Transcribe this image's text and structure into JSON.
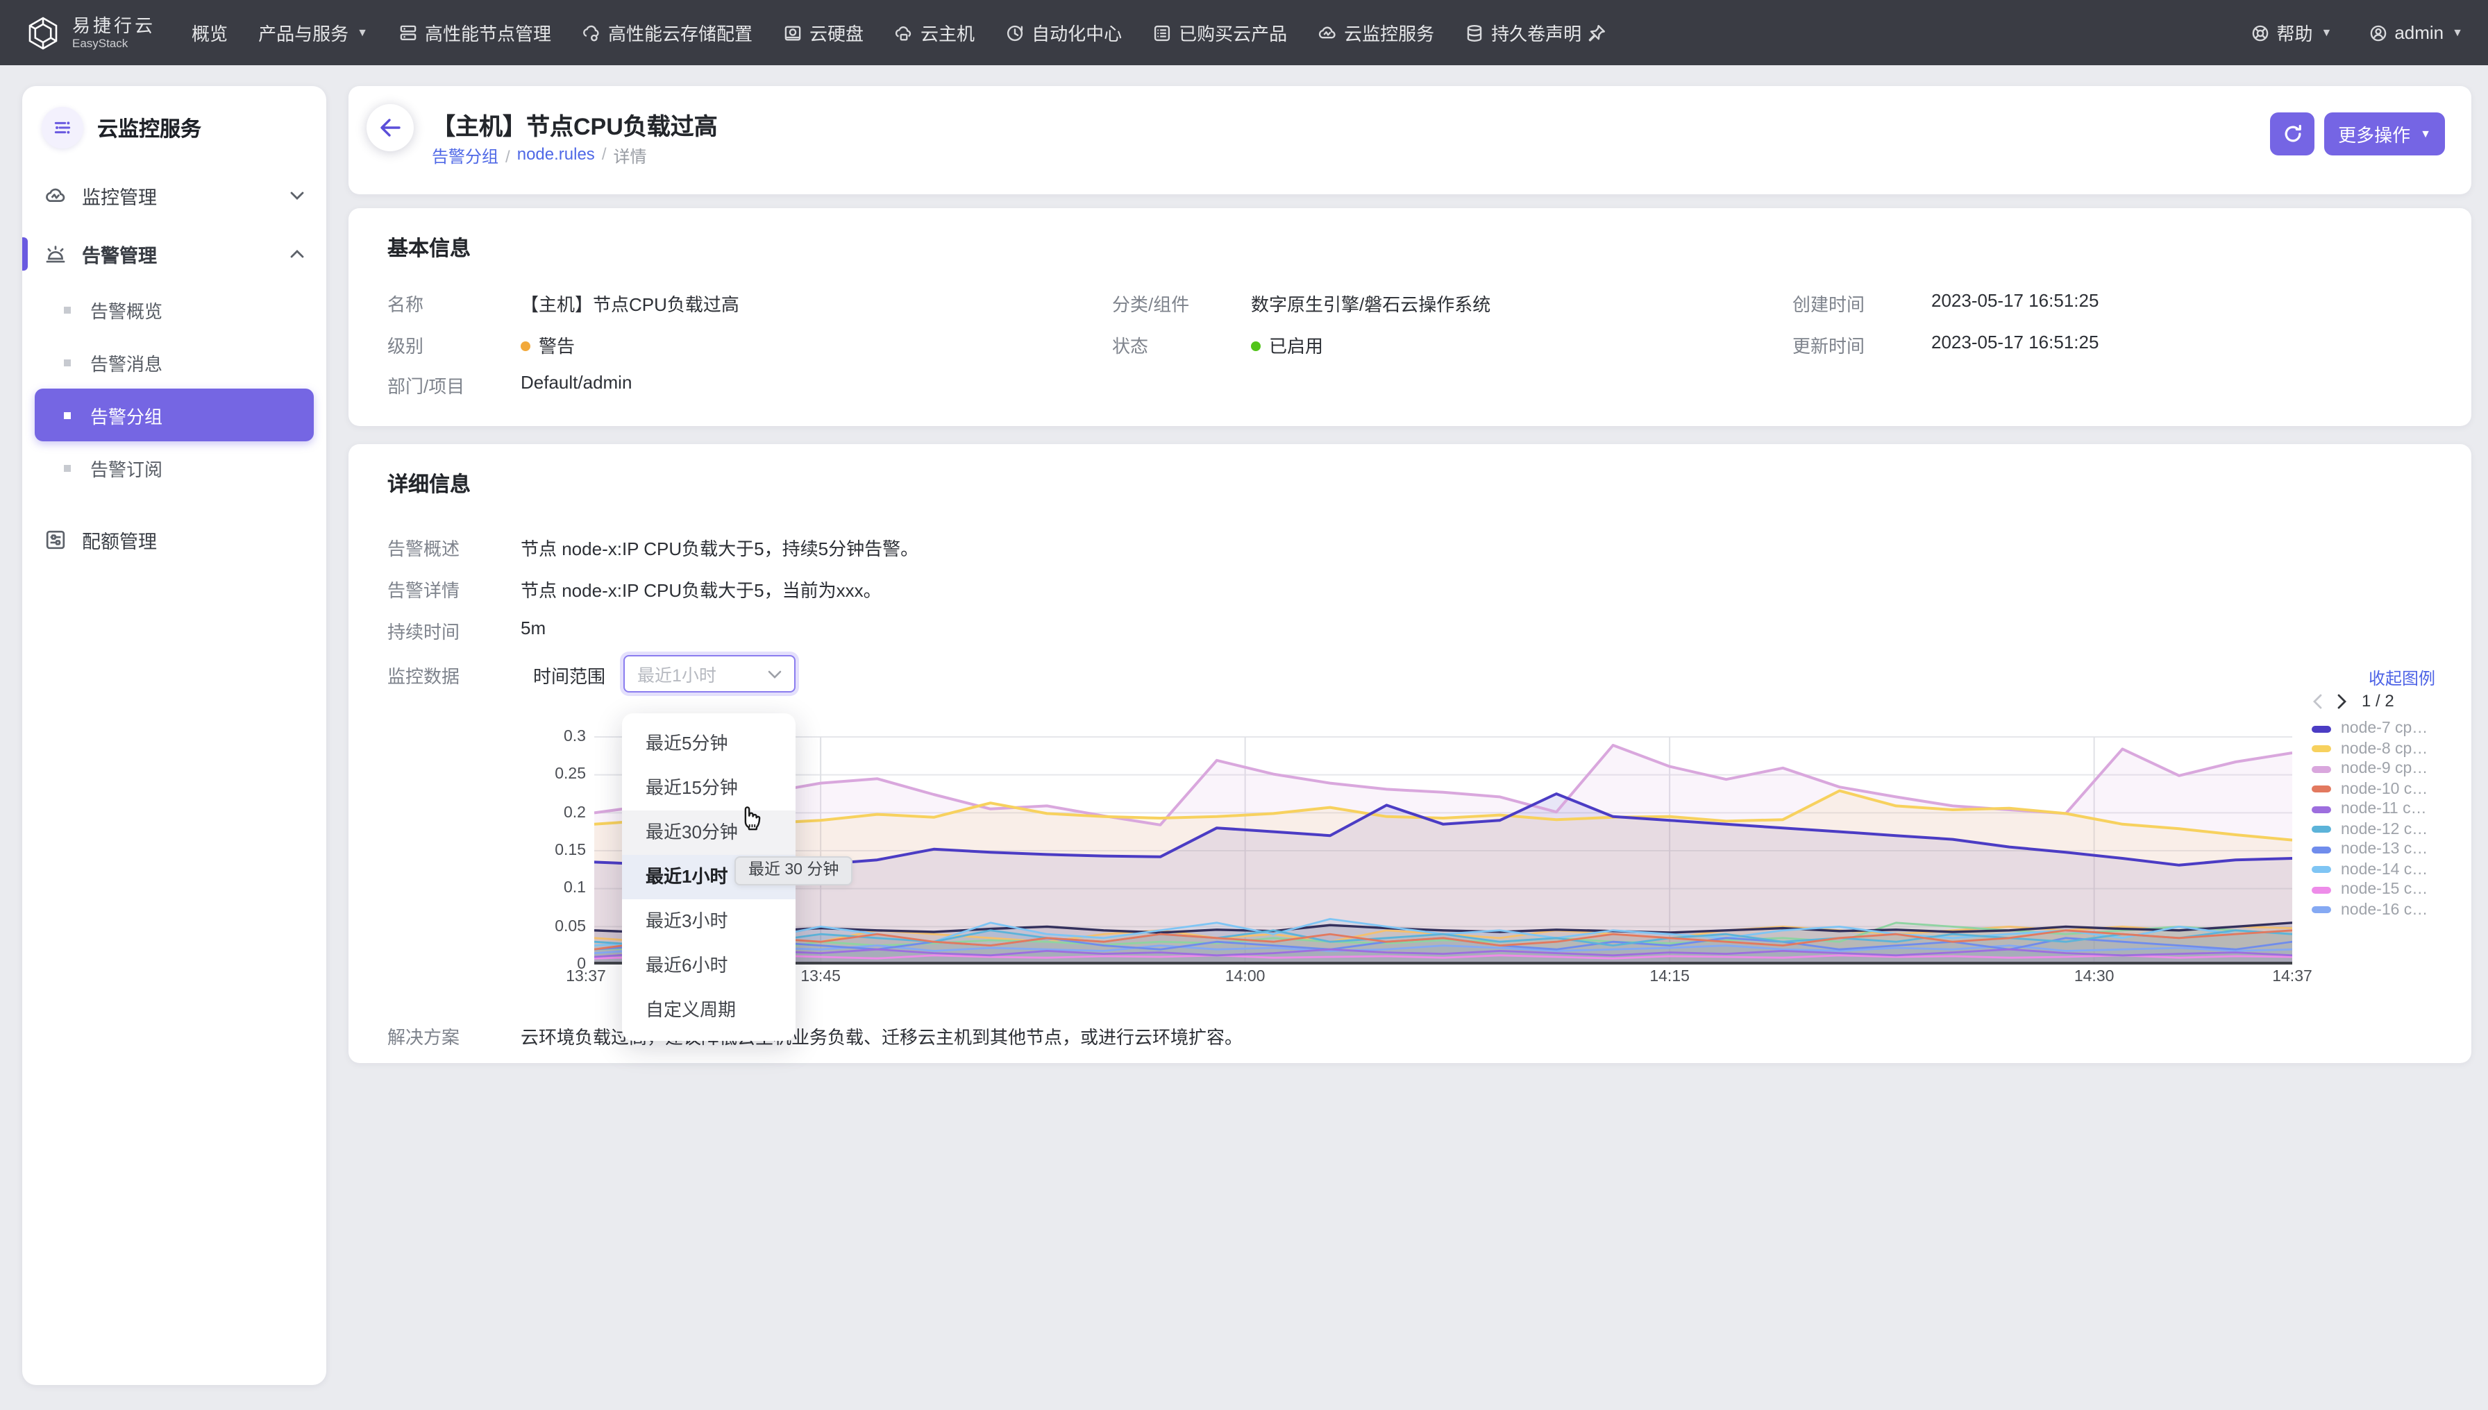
{
  "navbar": {
    "logo": {
      "line1": "易捷行云",
      "line2": "EasyStack"
    },
    "items": [
      {
        "label": "概览",
        "icon": "",
        "caret": false
      },
      {
        "label": "产品与服务",
        "icon": "",
        "caret": true
      },
      {
        "label": "高性能节点管理",
        "icon": "node",
        "caret": false
      },
      {
        "label": "高性能云存储配置",
        "icon": "storage",
        "caret": false
      },
      {
        "label": "云硬盘",
        "icon": "disk",
        "caret": false
      },
      {
        "label": "云主机",
        "icon": "host",
        "caret": false
      },
      {
        "label": "自动化中心",
        "icon": "automation",
        "caret": false
      },
      {
        "label": "已购买云产品",
        "icon": "purchased",
        "caret": false
      },
      {
        "label": "云监控服务",
        "icon": "monitor",
        "caret": false
      },
      {
        "label": "持久卷声明",
        "icon": "volume",
        "caret": false
      }
    ],
    "right": [
      {
        "label": "帮助",
        "icon": "help",
        "caret": true
      },
      {
        "label": "admin",
        "icon": "user",
        "caret": true
      }
    ]
  },
  "sidebar": {
    "title": "云监控服务",
    "monitor_section": "监控管理",
    "alert_section": "告警管理",
    "quota_section": "配额管理",
    "alert_children": [
      {
        "label": "告警概览",
        "selected": false
      },
      {
        "label": "告警消息",
        "selected": false
      },
      {
        "label": "告警分组",
        "selected": true
      },
      {
        "label": "告警订阅",
        "selected": false
      }
    ]
  },
  "page_header": {
    "title": "【主机】节点CPU负载过高",
    "breadcrumb": [
      {
        "label": "告警分组",
        "link": true
      },
      {
        "label": "node.rules",
        "link": true
      },
      {
        "label": "详情",
        "link": false
      }
    ],
    "more_label": "更多操作"
  },
  "basic_info": {
    "title": "基本信息",
    "name_label": "名称",
    "name": "【主机】节点CPU负载过高",
    "category_label": "分类/组件",
    "category": "数字原生引擎/磐石云操作系统",
    "created_label": "创建时间",
    "created": "2023-05-17 16:51:25",
    "level_label": "级别",
    "level": "警告",
    "level_color": "#f2a93b",
    "status_label": "状态",
    "status": "已启用",
    "status_color": "#52c41a",
    "updated_label": "更新时间",
    "updated": "2023-05-17 16:51:25",
    "dept_label": "部门/项目",
    "dept": "Default/admin"
  },
  "details": {
    "title": "详细信息",
    "summary_label": "告警概述",
    "summary": "节点 node-x:IP CPU负载大于5，持续5分钟告警。",
    "detail_label": "告警详情",
    "detail": "节点 node-x:IP CPU负载大于5，当前为xxx。",
    "duration_label": "持续时间",
    "duration": "5m",
    "monitor_label": "监控数据",
    "range_label": "时间范围",
    "select_value": "最近1小时",
    "collapse_legend": "收起图例",
    "solution_label": "解决方案",
    "solution": "云环境负载过高，建议降低云主机业务负载、迁移云主机到其他节点，或进行云环境扩容。"
  },
  "dropdown": {
    "options": [
      {
        "label": "最近5分钟",
        "hover": false,
        "selected": false
      },
      {
        "label": "最近15分钟",
        "hover": false,
        "selected": false
      },
      {
        "label": "最近30分钟",
        "hover": true,
        "selected": false
      },
      {
        "label": "最近1小时",
        "hover": false,
        "selected": true
      },
      {
        "label": "最近3小时",
        "hover": false,
        "selected": false
      },
      {
        "label": "最近6小时",
        "hover": false,
        "selected": false
      },
      {
        "label": "自定义周期",
        "hover": false,
        "selected": false
      }
    ],
    "tooltip": "最近 30 分钟"
  },
  "chart_data": {
    "type": "line",
    "title": "",
    "xlabel": "",
    "ylabel": "",
    "x_step_minutes": 2,
    "x_total_minutes": 60,
    "xticks": [
      {
        "label": "13:37",
        "min": 0
      },
      {
        "label": "13:45",
        "min": 8
      },
      {
        "label": "14:00",
        "min": 23
      },
      {
        "label": "14:15",
        "min": 38
      },
      {
        "label": "14:30",
        "min": 53
      },
      {
        "label": "14:37",
        "min": 60
      }
    ],
    "yticks": [
      {
        "label": "0",
        "v": 0
      },
      {
        "label": "0.05",
        "v": 0.05
      },
      {
        "label": "0.1",
        "v": 0.1
      },
      {
        "label": "0.15",
        "v": 0.15
      },
      {
        "label": "0.2",
        "v": 0.2
      },
      {
        "label": "0.25",
        "v": 0.25
      },
      {
        "label": "0.3",
        "v": 0.3
      }
    ],
    "ylim": [
      0,
      0.3
    ],
    "grid": true,
    "legend_position": "right",
    "legend_page": "1 / 2",
    "series": [
      {
        "name": "node-7 cp…",
        "color": "#4b3cc4",
        "width": 2,
        "in_legend": true,
        "values": [
          0.135,
          0.132,
          0.128,
          0.13,
          0.132,
          0.138,
          0.152,
          0.148,
          0.145,
          0.143,
          0.142,
          0.18,
          0.175,
          0.17,
          0.21,
          0.185,
          0.19,
          0.225,
          0.195,
          0.19,
          0.185,
          0.18,
          0.175,
          0.17,
          0.165,
          0.155,
          0.148,
          0.14,
          0.131,
          0.138,
          0.14
        ]
      },
      {
        "name": "node-8 cp…",
        "color": "#f7d15e",
        "width": 2,
        "in_legend": true,
        "values": [
          0.185,
          0.19,
          0.186,
          0.186,
          0.19,
          0.198,
          0.194,
          0.213,
          0.199,
          0.195,
          0.193,
          0.195,
          0.199,
          0.207,
          0.195,
          0.193,
          0.197,
          0.191,
          0.194,
          0.195,
          0.189,
          0.191,
          0.229,
          0.209,
          0.204,
          0.206,
          0.199,
          0.185,
          0.179,
          0.171,
          0.164
        ]
      },
      {
        "name": "node-9 cp…",
        "color": "#d9a7dd",
        "width": 2,
        "in_legend": true,
        "values": [
          0.2,
          0.21,
          0.22,
          0.226,
          0.239,
          0.245,
          0.224,
          0.205,
          0.209,
          0.196,
          0.184,
          0.269,
          0.251,
          0.239,
          0.231,
          0.227,
          0.221,
          0.201,
          0.289,
          0.261,
          0.244,
          0.259,
          0.234,
          0.221,
          0.209,
          0.204,
          0.199,
          0.284,
          0.249,
          0.267,
          0.279
        ]
      },
      {
        "name": "node-10 c…",
        "color": "#e2795f",
        "width": 1.4,
        "in_legend": true,
        "values": [
          0.02,
          0.03,
          0.025,
          0.035,
          0.03,
          0.04,
          0.03,
          0.025,
          0.035,
          0.03,
          0.04,
          0.035,
          0.03,
          0.04,
          0.03,
          0.035,
          0.025,
          0.03,
          0.04,
          0.035,
          0.03,
          0.025,
          0.035,
          0.04,
          0.03,
          0.035,
          0.045,
          0.04,
          0.035,
          0.04,
          0.045
        ]
      },
      {
        "name": "node-11 c…",
        "color": "#9d6ede",
        "width": 1.4,
        "in_legend": true,
        "values": [
          0.01,
          0.015,
          0.012,
          0.018,
          0.015,
          0.02,
          0.015,
          0.012,
          0.018,
          0.014,
          0.016,
          0.012,
          0.015,
          0.02,
          0.016,
          0.014,
          0.018,
          0.015,
          0.012,
          0.016,
          0.014,
          0.018,
          0.015,
          0.012,
          0.016,
          0.02,
          0.015,
          0.012,
          0.014,
          0.016,
          0.012
        ]
      },
      {
        "name": "node-12 c…",
        "color": "#5cb3d9",
        "width": 1.4,
        "in_legend": true,
        "values": [
          0.03,
          0.025,
          0.035,
          0.03,
          0.04,
          0.035,
          0.03,
          0.045,
          0.035,
          0.03,
          0.04,
          0.035,
          0.045,
          0.03,
          0.035,
          0.04,
          0.03,
          0.035,
          0.025,
          0.035,
          0.04,
          0.03,
          0.035,
          0.03,
          0.04,
          0.035,
          0.03,
          0.04,
          0.035,
          0.045,
          0.04
        ]
      },
      {
        "name": "node-13 c…",
        "color": "#6f8cec",
        "width": 1.4,
        "in_legend": true,
        "values": [
          0.02,
          0.025,
          0.02,
          0.03,
          0.025,
          0.02,
          0.03,
          0.025,
          0.035,
          0.025,
          0.02,
          0.03,
          0.025,
          0.02,
          0.03,
          0.035,
          0.025,
          0.02,
          0.03,
          0.025,
          0.035,
          0.03,
          0.02,
          0.025,
          0.03,
          0.02,
          0.035,
          0.03,
          0.025,
          0.02,
          0.03
        ]
      },
      {
        "name": "node-14 c…",
        "color": "#7fc5f4",
        "width": 1.4,
        "in_legend": true,
        "values": [
          0.025,
          0.03,
          0.04,
          0.035,
          0.05,
          0.04,
          0.03,
          0.055,
          0.04,
          0.035,
          0.045,
          0.055,
          0.04,
          0.06,
          0.05,
          0.04,
          0.045,
          0.035,
          0.045,
          0.04,
          0.035,
          0.045,
          0.05,
          0.04,
          0.035,
          0.04,
          0.045,
          0.035,
          0.05,
          0.04,
          0.045
        ]
      },
      {
        "name": "node-15 c…",
        "color": "#ee8ce9",
        "width": 1.4,
        "in_legend": true,
        "values": [
          0.008,
          0.01,
          0.009,
          0.012,
          0.01,
          0.008,
          0.012,
          0.01,
          0.009,
          0.011,
          0.01,
          0.012,
          0.009,
          0.01,
          0.011,
          0.009,
          0.012,
          0.01,
          0.008,
          0.011,
          0.01,
          0.009,
          0.012,
          0.01,
          0.011,
          0.009,
          0.01,
          0.012,
          0.009,
          0.011,
          0.01
        ]
      },
      {
        "name": "node-16 c…",
        "color": "#85a9f3",
        "width": 1.4,
        "in_legend": true,
        "values": [
          0.015,
          0.02,
          0.018,
          0.022,
          0.02,
          0.025,
          0.018,
          0.022,
          0.02,
          0.018,
          0.025,
          0.02,
          0.022,
          0.018,
          0.02,
          0.025,
          0.022,
          0.018,
          0.02,
          0.022,
          0.025,
          0.02,
          0.018,
          0.022,
          0.02,
          0.025,
          0.018,
          0.02,
          0.022,
          0.018,
          0.02
        ]
      },
      {
        "name": "series-dark",
        "color": "#33305c",
        "width": 1.7,
        "in_legend": false,
        "values": [
          0.045,
          0.042,
          0.046,
          0.044,
          0.048,
          0.045,
          0.043,
          0.047,
          0.05,
          0.045,
          0.042,
          0.046,
          0.044,
          0.052,
          0.048,
          0.045,
          0.043,
          0.046,
          0.044,
          0.042,
          0.045,
          0.048,
          0.044,
          0.046,
          0.043,
          0.045,
          0.05,
          0.047,
          0.045,
          0.05,
          0.055
        ]
      },
      {
        "name": "series-green",
        "color": "#8fd3a2",
        "width": 1.4,
        "in_legend": false,
        "values": [
          0.02,
          0.022,
          0.025,
          0.02,
          0.03,
          0.025,
          0.028,
          0.032,
          0.03,
          0.026,
          0.03,
          0.028,
          0.035,
          0.03,
          0.028,
          0.032,
          0.03,
          0.035,
          0.03,
          0.028,
          0.032,
          0.035,
          0.03,
          0.055,
          0.05,
          0.045,
          0.04,
          0.045,
          0.05,
          0.045,
          0.04
        ]
      },
      {
        "name": "series-orange",
        "color": "#f3c06e",
        "width": 1.4,
        "in_legend": false,
        "values": [
          0.035,
          0.03,
          0.04,
          0.035,
          0.03,
          0.045,
          0.04,
          0.035,
          0.03,
          0.04,
          0.045,
          0.035,
          0.04,
          0.03,
          0.045,
          0.04,
          0.035,
          0.045,
          0.04,
          0.035,
          0.045,
          0.05,
          0.045,
          0.04,
          0.045,
          0.05,
          0.045,
          0.05,
          0.045,
          0.05,
          0.048
        ]
      }
    ]
  }
}
